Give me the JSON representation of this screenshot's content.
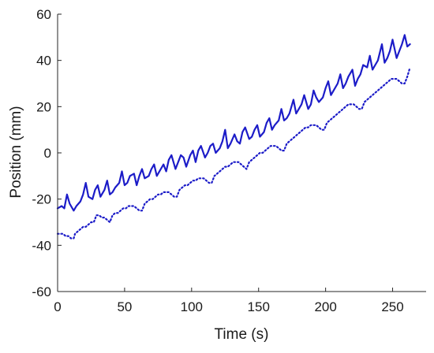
{
  "chart_data": {
    "type": "line",
    "title": "",
    "xlabel": "Time (s)",
    "ylabel": "Position (mm)",
    "xlim": [
      0,
      275
    ],
    "ylim": [
      -60,
      60
    ],
    "xticks": [
      0,
      50,
      100,
      150,
      200,
      250
    ],
    "yticks": [
      -60,
      -40,
      -20,
      0,
      20,
      40,
      60
    ],
    "xtick_labels": [
      "0",
      "50",
      "100",
      "150",
      "200",
      "250"
    ],
    "ytick_labels": [
      "-60",
      "-40",
      "-20",
      "0",
      "20",
      "40",
      "60"
    ],
    "grid": false,
    "legend": "none",
    "series": [
      {
        "style": "solid",
        "color": "#1c1cc8",
        "x": [
          0,
          3,
          5,
          7,
          9,
          12,
          14,
          17,
          19,
          21,
          23,
          26,
          28,
          30,
          32,
          35,
          37,
          39,
          41,
          43,
          46,
          48,
          50,
          52,
          54,
          57,
          59,
          61,
          63,
          65,
          68,
          70,
          72,
          74,
          77,
          79,
          81,
          83,
          85,
          88,
          90,
          92,
          94,
          96,
          99,
          101,
          103,
          105,
          107,
          110,
          112,
          114,
          116,
          118,
          121,
          123,
          125,
          127,
          129,
          132,
          134,
          136,
          138,
          140,
          143,
          145,
          147,
          149,
          151,
          154,
          156,
          158,
          160,
          162,
          165,
          167,
          169,
          171,
          173,
          176,
          178,
          180,
          182,
          184,
          187,
          189,
          191,
          193,
          195,
          198,
          200,
          202,
          204,
          206,
          209,
          211,
          213,
          215,
          217,
          220,
          222,
          224,
          226,
          228,
          231,
          233,
          235,
          237,
          239,
          242,
          244,
          246,
          248,
          250,
          253,
          255,
          257,
          259,
          261,
          263
        ],
        "y": [
          -24,
          -23,
          -24,
          -18,
          -22,
          -25,
          -23,
          -21,
          -18,
          -13,
          -19,
          -20,
          -16,
          -14,
          -19,
          -16,
          -12,
          -18,
          -17,
          -15,
          -13,
          -8,
          -14,
          -13,
          -10,
          -9,
          -14,
          -10,
          -7,
          -11,
          -10,
          -7,
          -5,
          -10,
          -7,
          -5,
          -8,
          -3,
          -1,
          -7,
          -4,
          -1,
          -2,
          -6,
          -1,
          1,
          -4,
          1,
          3,
          -2,
          0,
          3,
          4,
          0,
          2,
          5,
          10,
          2,
          4,
          8,
          5,
          4,
          9,
          11,
          6,
          7,
          10,
          12,
          7,
          9,
          13,
          15,
          10,
          12,
          14,
          19,
          14,
          15,
          17,
          23,
          17,
          19,
          21,
          25,
          19,
          21,
          27,
          24,
          22,
          24,
          28,
          31,
          25,
          27,
          30,
          34,
          28,
          30,
          33,
          36,
          29,
          32,
          34,
          38,
          37,
          42,
          36,
          38,
          40,
          47,
          39,
          41,
          44,
          49,
          41,
          44,
          47,
          51,
          46,
          47
        ]
      },
      {
        "style": "dotted",
        "color": "#1c1cc8",
        "x": [
          0,
          4,
          6,
          8,
          10,
          12,
          13,
          15,
          17,
          19,
          21,
          23,
          25,
          27,
          29,
          31,
          33,
          35,
          37,
          39,
          41,
          43,
          45,
          47,
          49,
          51,
          53,
          55,
          57,
          59,
          61,
          63,
          65,
          67,
          69,
          71,
          73,
          75,
          77,
          79,
          81,
          83,
          85,
          87,
          89,
          91,
          93,
          95,
          97,
          99,
          101,
          103,
          105,
          107,
          109,
          111,
          113,
          115,
          117,
          119,
          121,
          123,
          125,
          127,
          129,
          131,
          133,
          135,
          137,
          139,
          141,
          143,
          145,
          147,
          149,
          151,
          153,
          155,
          157,
          159,
          161,
          163,
          165,
          167,
          169,
          171,
          173,
          175,
          177,
          179,
          181,
          183,
          185,
          187,
          189,
          191,
          193,
          195,
          197,
          199,
          201,
          203,
          205,
          207,
          209,
          211,
          213,
          215,
          217,
          219,
          221,
          223,
          225,
          227,
          229,
          231,
          233,
          235,
          237,
          239,
          241,
          243,
          245,
          247,
          249,
          251,
          253,
          255,
          257,
          259,
          261,
          263
        ],
        "y": [
          -35,
          -35,
          -36,
          -36,
          -37,
          -37,
          -35,
          -34,
          -33,
          -32,
          -32,
          -31,
          -30,
          -30,
          -27,
          -27,
          -28,
          -28,
          -29,
          -30,
          -27,
          -26,
          -26,
          -25,
          -24,
          -24,
          -23,
          -23,
          -23,
          -24,
          -25,
          -25,
          -22,
          -21,
          -20,
          -20,
          -19,
          -18,
          -18,
          -17,
          -17,
          -17,
          -18,
          -19,
          -19,
          -16,
          -15,
          -14,
          -14,
          -13,
          -12,
          -12,
          -11,
          -11,
          -11,
          -12,
          -13,
          -13,
          -10,
          -9,
          -8,
          -7,
          -6,
          -6,
          -5,
          -4,
          -4,
          -4,
          -5,
          -6,
          -7,
          -4,
          -3,
          -2,
          -1,
          0,
          0,
          1,
          2,
          3,
          3,
          3,
          2,
          1,
          1,
          4,
          5,
          6,
          7,
          8,
          9,
          10,
          11,
          11,
          12,
          12,
          12,
          11,
          10,
          10,
          13,
          14,
          15,
          16,
          17,
          18,
          19,
          20,
          21,
          21,
          21,
          20,
          19,
          19,
          22,
          23,
          24,
          25,
          26,
          27,
          28,
          29,
          30,
          31,
          32,
          32,
          32,
          31,
          30,
          30,
          33,
          37
        ]
      }
    ]
  },
  "colors": {
    "axis": "#262626",
    "tick_text": "#1a1a1a",
    "series": "#1c1cc8",
    "background": "#ffffff"
  }
}
